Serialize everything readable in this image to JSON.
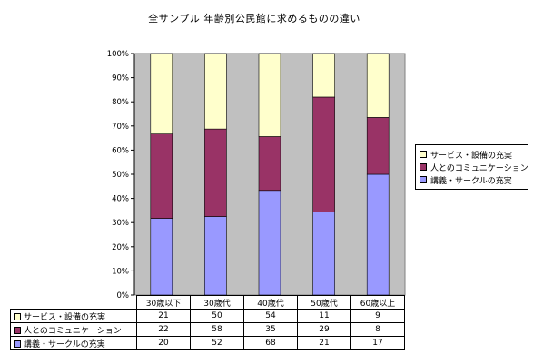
{
  "chart_data": {
    "type": "bar",
    "stacked": true,
    "normalized": "100%",
    "title": "全サンプル 年齢別公民館に求めるものの違い",
    "categories": [
      "30歳以下",
      "30歳代",
      "40歳代",
      "50歳代",
      "60歳以上"
    ],
    "ylim": [
      0,
      100
    ],
    "yticks": [
      "0%",
      "10%",
      "20%",
      "30%",
      "40%",
      "50%",
      "60%",
      "70%",
      "80%",
      "90%",
      "100%"
    ],
    "grid": false,
    "legend_position": "right",
    "series": [
      {
        "name": "講義・サークルの充実",
        "color": "#9999ff",
        "values": [
          20,
          52,
          68,
          21,
          17
        ]
      },
      {
        "name": "人とのコミュニケーション",
        "color": "#993366",
        "values": [
          22,
          58,
          35,
          29,
          8
        ]
      },
      {
        "name": "サービス・設備の充実",
        "color": "#ffffcc",
        "values": [
          21,
          50,
          54,
          11,
          9
        ]
      }
    ],
    "plot_background": "#c0c0c0"
  }
}
